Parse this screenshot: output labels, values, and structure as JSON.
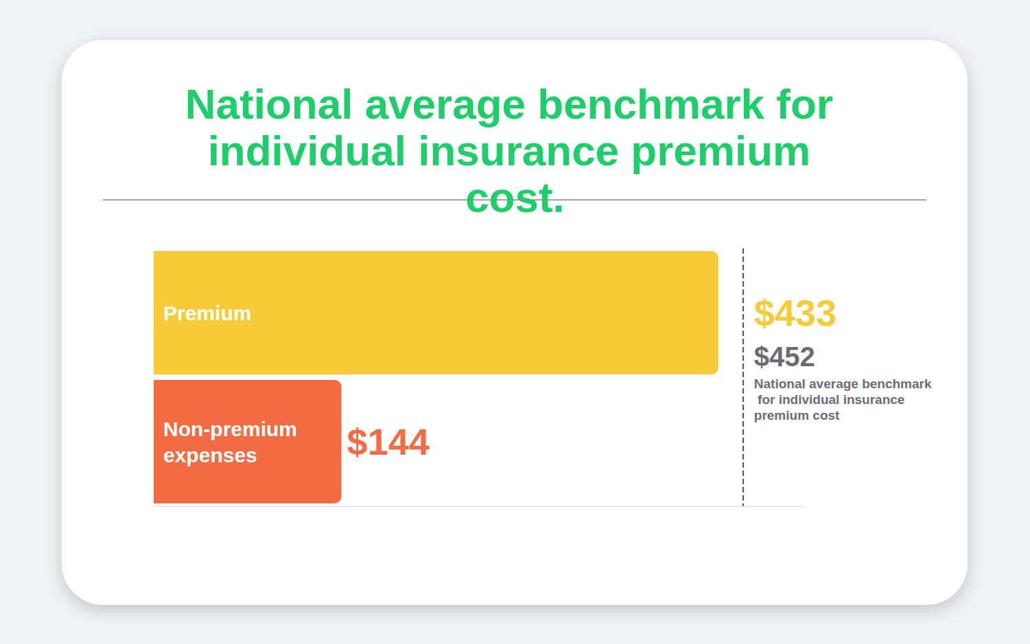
{
  "chart_data": {
    "type": "bar",
    "title": "National average benchmark for individual insurance premium cost.",
    "orientation": "horizontal",
    "categories": [
      "Premium",
      "Non-premium expenses"
    ],
    "values": [
      433,
      144
    ],
    "value_labels": [
      "$433",
      "$144"
    ],
    "colors": [
      "#F7CA38",
      "#F26B43"
    ],
    "data_labels": true,
    "tick_labels": "y",
    "grid": false,
    "xlim": [
      0,
      500
    ],
    "benchmark": {
      "value": 452,
      "label": "$452",
      "text": "National average benchmark for individual insurance premium cost"
    }
  }
}
